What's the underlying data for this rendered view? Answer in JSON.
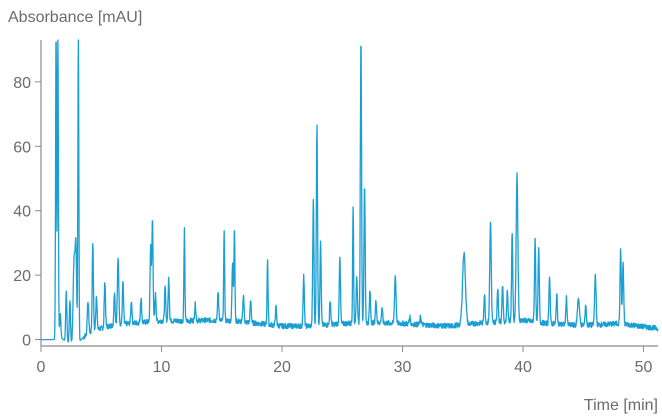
{
  "chart_data": {
    "type": "line",
    "title": "",
    "ylabel": "Absorbance [mAU]",
    "xlabel": "Time [min]",
    "xlim": [
      0,
      51.2
    ],
    "ylim": [
      -2,
      93
    ],
    "xticks": [
      0,
      10,
      20,
      30,
      40,
      50
    ],
    "yticks": [
      0,
      20,
      40,
      60,
      80
    ],
    "grid": false,
    "colors": {
      "trace": "#1a9fd4",
      "axis": "#8c8c8c",
      "text": "#6b6b6b"
    },
    "baseline": [
      [
        0,
        0
      ],
      [
        1.2,
        0
      ],
      [
        1.5,
        1
      ],
      [
        2.2,
        -1
      ],
      [
        2.8,
        -2
      ],
      [
        3.6,
        1
      ],
      [
        4.5,
        3
      ],
      [
        6,
        4.5
      ],
      [
        8,
        5.2
      ],
      [
        10,
        5.8
      ],
      [
        12,
        5.8
      ],
      [
        14,
        6
      ],
      [
        16,
        5.8
      ],
      [
        18,
        5
      ],
      [
        20,
        4.2
      ],
      [
        22,
        4.2
      ],
      [
        24,
        4.6
      ],
      [
        26,
        5.2
      ],
      [
        28,
        5.2
      ],
      [
        30,
        5
      ],
      [
        32,
        4.5
      ],
      [
        34,
        4.2
      ],
      [
        36,
        5
      ],
      [
        38,
        5.5
      ],
      [
        40,
        6
      ],
      [
        42,
        5
      ],
      [
        44,
        4.5
      ],
      [
        46,
        4.5
      ],
      [
        48,
        5
      ],
      [
        50,
        4
      ],
      [
        51.2,
        3.5
      ]
    ],
    "peaks": [
      [
        1.25,
        95,
        0.04
      ],
      [
        1.4,
        95,
        0.04
      ],
      [
        1.6,
        8,
        0.05
      ],
      [
        2.1,
        15,
        0.05
      ],
      [
        2.4,
        12,
        0.05
      ],
      [
        2.75,
        25,
        0.08
      ],
      [
        2.9,
        26,
        0.06
      ],
      [
        3.1,
        95,
        0.04
      ],
      [
        3.9,
        12,
        0.06
      ],
      [
        4.3,
        30,
        0.05
      ],
      [
        4.6,
        14,
        0.05
      ],
      [
        5.3,
        18,
        0.05
      ],
      [
        6.1,
        15,
        0.05
      ],
      [
        6.4,
        25,
        0.06
      ],
      [
        6.8,
        18,
        0.05
      ],
      [
        7.5,
        12,
        0.05
      ],
      [
        8.3,
        13,
        0.05
      ],
      [
        9.1,
        29,
        0.05
      ],
      [
        9.25,
        37,
        0.05
      ],
      [
        9.5,
        14,
        0.05
      ],
      [
        10.3,
        16,
        0.05
      ],
      [
        10.6,
        19,
        0.05
      ],
      [
        11.9,
        34,
        0.04
      ],
      [
        12.8,
        11,
        0.05
      ],
      [
        14.7,
        15,
        0.05
      ],
      [
        15.2,
        33,
        0.04
      ],
      [
        15.9,
        24,
        0.05
      ],
      [
        16.05,
        35,
        0.04
      ],
      [
        16.8,
        14,
        0.05
      ],
      [
        17.4,
        12,
        0.05
      ],
      [
        18.8,
        25,
        0.04
      ],
      [
        19.5,
        10,
        0.05
      ],
      [
        21.8,
        20,
        0.05
      ],
      [
        22.6,
        43,
        0.05
      ],
      [
        22.9,
        66,
        0.05
      ],
      [
        23.2,
        30,
        0.05
      ],
      [
        24,
        12,
        0.05
      ],
      [
        24.8,
        26,
        0.05
      ],
      [
        25.9,
        41,
        0.04
      ],
      [
        26.2,
        20,
        0.05
      ],
      [
        26.55,
        92,
        0.05
      ],
      [
        26.85,
        48,
        0.05
      ],
      [
        27.3,
        15,
        0.05
      ],
      [
        27.8,
        12,
        0.05
      ],
      [
        28.3,
        10,
        0.05
      ],
      [
        29.4,
        20,
        0.06
      ],
      [
        30.6,
        7,
        0.05
      ],
      [
        31.5,
        7,
        0.05
      ],
      [
        35.1,
        27,
        0.12
      ],
      [
        36.8,
        14,
        0.05
      ],
      [
        37.3,
        37,
        0.06
      ],
      [
        37.9,
        16,
        0.05
      ],
      [
        38.3,
        17,
        0.05
      ],
      [
        38.7,
        15,
        0.05
      ],
      [
        39.1,
        33,
        0.05
      ],
      [
        39.5,
        51,
        0.07
      ],
      [
        41.0,
        31,
        0.05
      ],
      [
        41.3,
        28,
        0.05
      ],
      [
        42.2,
        20,
        0.05
      ],
      [
        42.8,
        14,
        0.05
      ],
      [
        43.6,
        13,
        0.05
      ],
      [
        44.6,
        13,
        0.08
      ],
      [
        45.2,
        11,
        0.05
      ],
      [
        46.0,
        20,
        0.06
      ],
      [
        48.1,
        28,
        0.05
      ],
      [
        48.3,
        24,
        0.05
      ]
    ]
  }
}
